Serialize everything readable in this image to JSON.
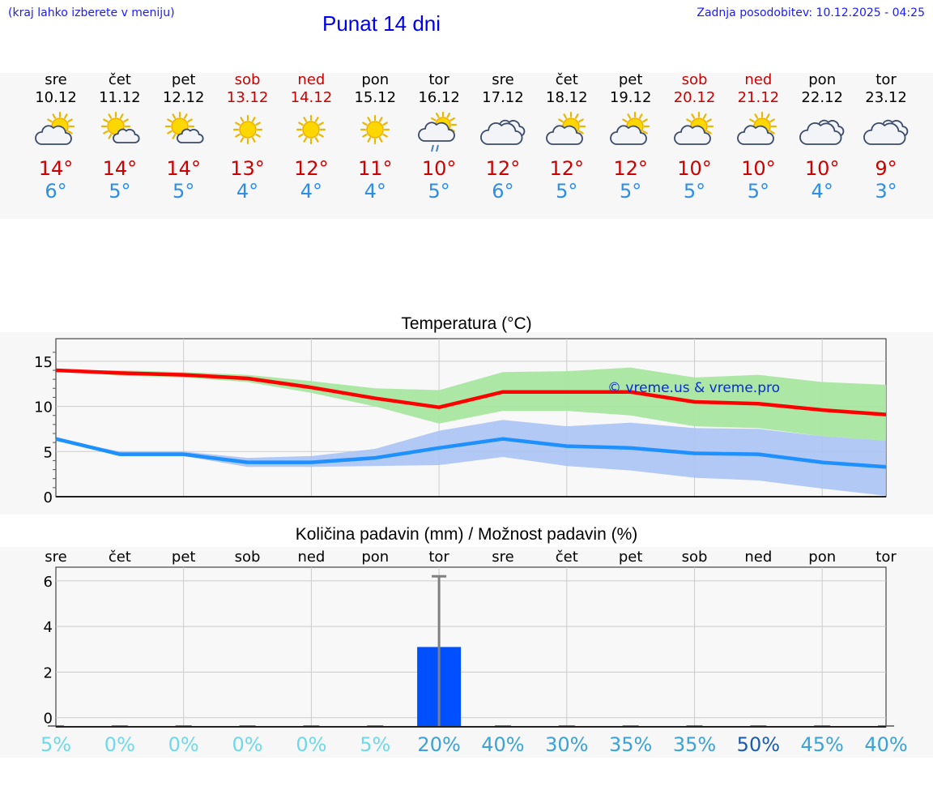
{
  "header": {
    "hint": "(kraj lahko izberete v meniju)",
    "title": "Punat 14 dni",
    "updated": "Zadnja posodobitev: 10.12.2025 - 04:25"
  },
  "days": [
    {
      "name": "sre",
      "date": "10.12",
      "icon": "sun-cloud",
      "max": "14°",
      "min": "6°",
      "weekend": false
    },
    {
      "name": "čet",
      "date": "11.12",
      "icon": "sun-small-cloud",
      "max": "14°",
      "min": "5°",
      "weekend": false
    },
    {
      "name": "pet",
      "date": "12.12",
      "icon": "sun-small-cloud",
      "max": "14°",
      "min": "5°",
      "weekend": false
    },
    {
      "name": "sob",
      "date": "13.12",
      "icon": "sun",
      "max": "13°",
      "min": "4°",
      "weekend": true
    },
    {
      "name": "ned",
      "date": "14.12",
      "icon": "sun",
      "max": "12°",
      "min": "4°",
      "weekend": true
    },
    {
      "name": "pon",
      "date": "15.12",
      "icon": "sun",
      "max": "11°",
      "min": "4°",
      "weekend": false
    },
    {
      "name": "tor",
      "date": "16.12",
      "icon": "sun-cloud-rain",
      "max": "10°",
      "min": "5°",
      "weekend": false
    },
    {
      "name": "sre",
      "date": "17.12",
      "icon": "cloud",
      "max": "12°",
      "min": "6°",
      "weekend": false
    },
    {
      "name": "čet",
      "date": "18.12",
      "icon": "sun-cloud",
      "max": "12°",
      "min": "5°",
      "weekend": false
    },
    {
      "name": "pet",
      "date": "19.12",
      "icon": "sun-cloud",
      "max": "12°",
      "min": "5°",
      "weekend": false
    },
    {
      "name": "sob",
      "date": "20.12",
      "icon": "sun-cloud",
      "max": "10°",
      "min": "5°",
      "weekend": true
    },
    {
      "name": "ned",
      "date": "21.12",
      "icon": "sun-cloud",
      "max": "10°",
      "min": "5°",
      "weekend": true
    },
    {
      "name": "pon",
      "date": "22.12",
      "icon": "cloud",
      "max": "10°",
      "min": "4°",
      "weekend": false
    },
    {
      "name": "tor",
      "date": "23.12",
      "icon": "cloud",
      "max": "9°",
      "min": "3°",
      "weekend": false
    }
  ],
  "colors": {
    "max_line": "#ff0000",
    "min_line": "#1e90ff",
    "max_band": "#a8e6a0",
    "min_band": "#a9c3f3",
    "bar": "#0050ff",
    "weekend": "#cc0000"
  },
  "chart_data": [
    {
      "type": "line",
      "title": "Temperatura (°C)",
      "watermark": "© vreme.us & vreme.pro",
      "categories": [
        "10.12",
        "11.12",
        "12.12",
        "13.12",
        "14.12",
        "15.12",
        "16.12",
        "17.12",
        "18.12",
        "19.12",
        "20.12",
        "21.12",
        "22.12",
        "23.12"
      ],
      "ylim": [
        0,
        17.5
      ],
      "yticks": [
        "0",
        "5",
        "10",
        "15"
      ],
      "series": [
        {
          "name": "max",
          "values": [
            14,
            13.7,
            13.5,
            13.1,
            12.1,
            10.9,
            9.9,
            11.6,
            11.6,
            11.6,
            10.5,
            10.3,
            9.6,
            9.1
          ],
          "band_low": [
            14,
            13.4,
            13.2,
            12.7,
            11.5,
            10.0,
            8.1,
            9.5,
            9.5,
            9.0,
            7.8,
            7.6,
            6.7,
            6.2
          ],
          "band_high": [
            14,
            14.0,
            13.8,
            13.5,
            12.8,
            12.0,
            11.8,
            13.8,
            13.9,
            14.3,
            13.2,
            13.5,
            12.7,
            12.4
          ]
        },
        {
          "name": "min",
          "values": [
            6.4,
            4.7,
            4.7,
            3.8,
            3.8,
            4.3,
            5.4,
            6.4,
            5.6,
            5.4,
            4.8,
            4.7,
            3.8,
            3.3
          ],
          "band_low": [
            6.4,
            4.5,
            4.5,
            3.3,
            3.3,
            3.4,
            3.5,
            4.4,
            3.4,
            2.9,
            2.1,
            1.8,
            0.9,
            0.1
          ],
          "band_high": [
            6.4,
            5.0,
            5.0,
            4.3,
            4.5,
            5.3,
            7.3,
            8.5,
            7.8,
            8.2,
            7.6,
            7.5,
            6.7,
            6.2
          ]
        }
      ]
    },
    {
      "type": "bar",
      "title": "Količina padavin (mm) / Možnost padavin (%)",
      "categories": [
        "sre",
        "čet",
        "pet",
        "sob",
        "ned",
        "pon",
        "tor",
        "sre",
        "čet",
        "pet",
        "sob",
        "ned",
        "pon",
        "tor"
      ],
      "values": [
        0,
        0,
        0,
        0,
        0,
        0,
        3.1,
        0,
        0,
        0,
        0,
        0,
        0,
        0
      ],
      "error_high": [
        0,
        0,
        0,
        0,
        0,
        0,
        6.2,
        0,
        0,
        0,
        0,
        0,
        0,
        0
      ],
      "ylim": [
        -0.4,
        6.6
      ],
      "yticks": [
        "0",
        "2",
        "4",
        "6"
      ],
      "probability": [
        "5%",
        "0%",
        "0%",
        "0%",
        "0%",
        "5%",
        "20%",
        "40%",
        "30%",
        "35%",
        "35%",
        "50%",
        "45%",
        "40%"
      ],
      "probability_colors": [
        "#6fd8ea",
        "#6fd8ea",
        "#6fd8ea",
        "#6fd8ea",
        "#6fd8ea",
        "#6fd8ea",
        "#3aa2d8",
        "#3aa2d8",
        "#3aa2d8",
        "#3aa2d8",
        "#3aa2d8",
        "#1a5bb0",
        "#3aa2d8",
        "#3aa2d8"
      ]
    }
  ]
}
